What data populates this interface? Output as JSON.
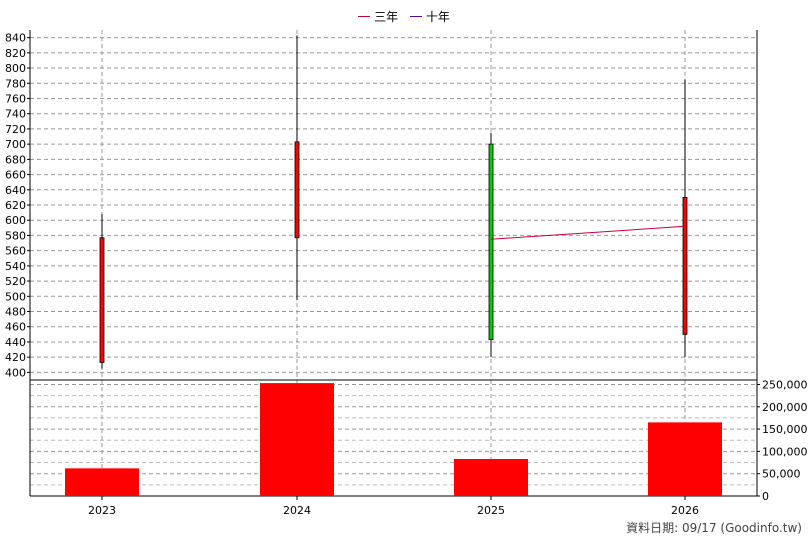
{
  "chart_data": {
    "type": "candlestick_with_volume",
    "categories": [
      "2023",
      "2024",
      "2025",
      "2026"
    ],
    "price_axis": {
      "ylim": [
        390,
        850
      ],
      "ticks": [
        400,
        420,
        440,
        460,
        480,
        500,
        520,
        540,
        560,
        580,
        600,
        620,
        640,
        660,
        680,
        700,
        720,
        740,
        760,
        780,
        800,
        820,
        840
      ]
    },
    "volume_axis": {
      "ylim": [
        0,
        260000
      ],
      "ticks": [
        0,
        50000,
        100000,
        150000,
        200000,
        250000
      ],
      "tick_labels": [
        "0",
        "50,000",
        "100,000",
        "150,000",
        "200,000",
        "250,000"
      ]
    },
    "ohlc": [
      {
        "year": "2023",
        "open": 413,
        "high": 608,
        "low": 405,
        "close": 577,
        "color": "#ff0000"
      },
      {
        "year": "2024",
        "open": 577,
        "high": 843,
        "low": 495,
        "close": 703,
        "color": "#ff0000"
      },
      {
        "year": "2025",
        "open": 700,
        "high": 715,
        "low": 420,
        "close": 443,
        "color": "#00cc00"
      },
      {
        "year": "2026",
        "open": 450,
        "high": 785,
        "low": 420,
        "close": 630,
        "color": "#ff0000"
      }
    ],
    "volume": [
      62000,
      253000,
      83000,
      165000
    ],
    "series": [
      {
        "name": "三年",
        "color": "#c8003c",
        "points": [
          {
            "x": "2025",
            "y": 575
          },
          {
            "x": "2026",
            "y": 592
          }
        ]
      },
      {
        "name": "十年",
        "color": "#5a00a0",
        "points": []
      }
    ],
    "grid": true,
    "legend_position": "top-center"
  },
  "footer_text": "資料日期: 09/17  (Goodinfo.tw)"
}
